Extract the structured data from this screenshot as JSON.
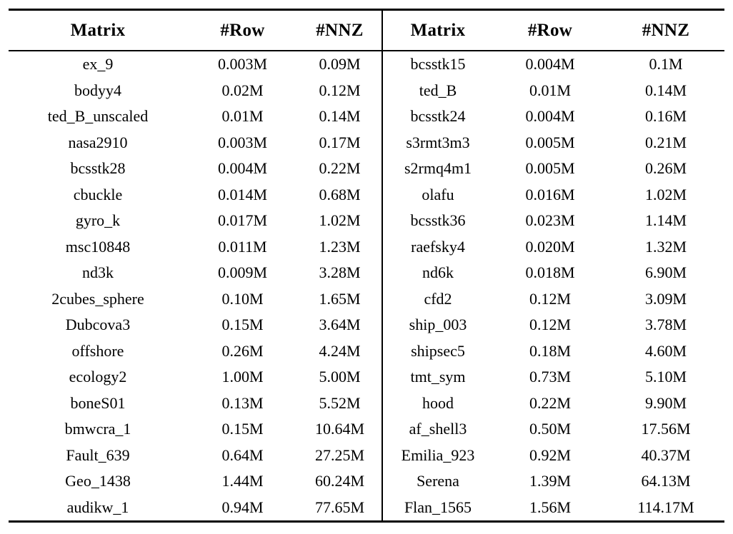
{
  "table": {
    "headers": [
      "Matrix",
      "#Row",
      "#NNZ",
      "Matrix",
      "#Row",
      "#NNZ"
    ],
    "rows": [
      [
        "ex_9",
        "0.003M",
        "0.09M",
        "bcsstk15",
        "0.004M",
        "0.1M"
      ],
      [
        "bodyy4",
        "0.02M",
        "0.12M",
        "ted_B",
        "0.01M",
        "0.14M"
      ],
      [
        "ted_B_unscaled",
        "0.01M",
        "0.14M",
        "bcsstk24",
        "0.004M",
        "0.16M"
      ],
      [
        "nasa2910",
        "0.003M",
        "0.17M",
        "s3rmt3m3",
        "0.005M",
        "0.21M"
      ],
      [
        "bcsstk28",
        "0.004M",
        "0.22M",
        "s2rmq4m1",
        "0.005M",
        "0.26M"
      ],
      [
        "cbuckle",
        "0.014M",
        "0.68M",
        "olafu",
        "0.016M",
        "1.02M"
      ],
      [
        "gyro_k",
        "0.017M",
        "1.02M",
        "bcsstk36",
        "0.023M",
        "1.14M"
      ],
      [
        "msc10848",
        "0.011M",
        "1.23M",
        "raefsky4",
        "0.020M",
        "1.32M"
      ],
      [
        "nd3k",
        "0.009M",
        "3.28M",
        "nd6k",
        "0.018M",
        "6.90M"
      ],
      [
        "2cubes_sphere",
        "0.10M",
        "1.65M",
        "cfd2",
        "0.12M",
        "3.09M"
      ],
      [
        "Dubcova3",
        "0.15M",
        "3.64M",
        "ship_003",
        "0.12M",
        "3.78M"
      ],
      [
        "offshore",
        "0.26M",
        "4.24M",
        "shipsec5",
        "0.18M",
        "4.60M"
      ],
      [
        "ecology2",
        "1.00M",
        "5.00M",
        "tmt_sym",
        "0.73M",
        "5.10M"
      ],
      [
        "boneS01",
        "0.13M",
        "5.52M",
        "hood",
        "0.22M",
        "9.90M"
      ],
      [
        "bmwcra_1",
        "0.15M",
        "10.64M",
        "af_shell3",
        "0.50M",
        "17.56M"
      ],
      [
        "Fault_639",
        "0.64M",
        "27.25M",
        "Emilia_923",
        "0.92M",
        "40.37M"
      ],
      [
        "Geo_1438",
        "1.44M",
        "60.24M",
        "Serena",
        "1.39M",
        "64.13M"
      ],
      [
        "audikw_1",
        "0.94M",
        "77.65M",
        "Flan_1565",
        "1.56M",
        "114.17M"
      ]
    ]
  },
  "colors": {
    "text": "#000000",
    "background": "#ffffff",
    "rule": "#000000"
  }
}
